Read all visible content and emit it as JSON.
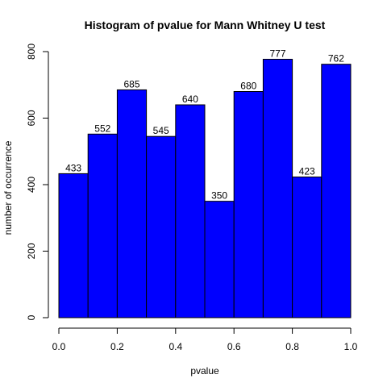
{
  "chart_data": {
    "type": "bar",
    "title": "Histogram of pvalue for Mann Whitney U test",
    "xlabel": "pvalue",
    "ylabel": "number of occurrence",
    "bins": [
      [
        0.0,
        0.1
      ],
      [
        0.1,
        0.2
      ],
      [
        0.2,
        0.3
      ],
      [
        0.3,
        0.4
      ],
      [
        0.4,
        0.5
      ],
      [
        0.5,
        0.6
      ],
      [
        0.6,
        0.7
      ],
      [
        0.7,
        0.8
      ],
      [
        0.8,
        0.9
      ],
      [
        0.9,
        1.0
      ]
    ],
    "values": [
      433,
      552,
      685,
      545,
      640,
      350,
      680,
      777,
      423,
      762
    ],
    "data_labels": [
      "433",
      "552",
      "685",
      "545",
      "640",
      "350",
      "680",
      "777",
      "423",
      "762"
    ],
    "xlim": [
      0,
      1
    ],
    "ylim": [
      0,
      800
    ],
    "x_ticks": [
      0.0,
      0.2,
      0.4,
      0.6,
      0.8,
      1.0
    ],
    "x_tick_labels": [
      "0.0",
      "0.2",
      "0.4",
      "0.6",
      "0.8",
      "1.0"
    ],
    "y_ticks": [
      0,
      200,
      400,
      600,
      800
    ],
    "y_tick_labels": [
      "0",
      "200",
      "400",
      "600",
      "800"
    ],
    "grid": false,
    "bar_color": "#0000ff",
    "border_color": "#000000"
  }
}
